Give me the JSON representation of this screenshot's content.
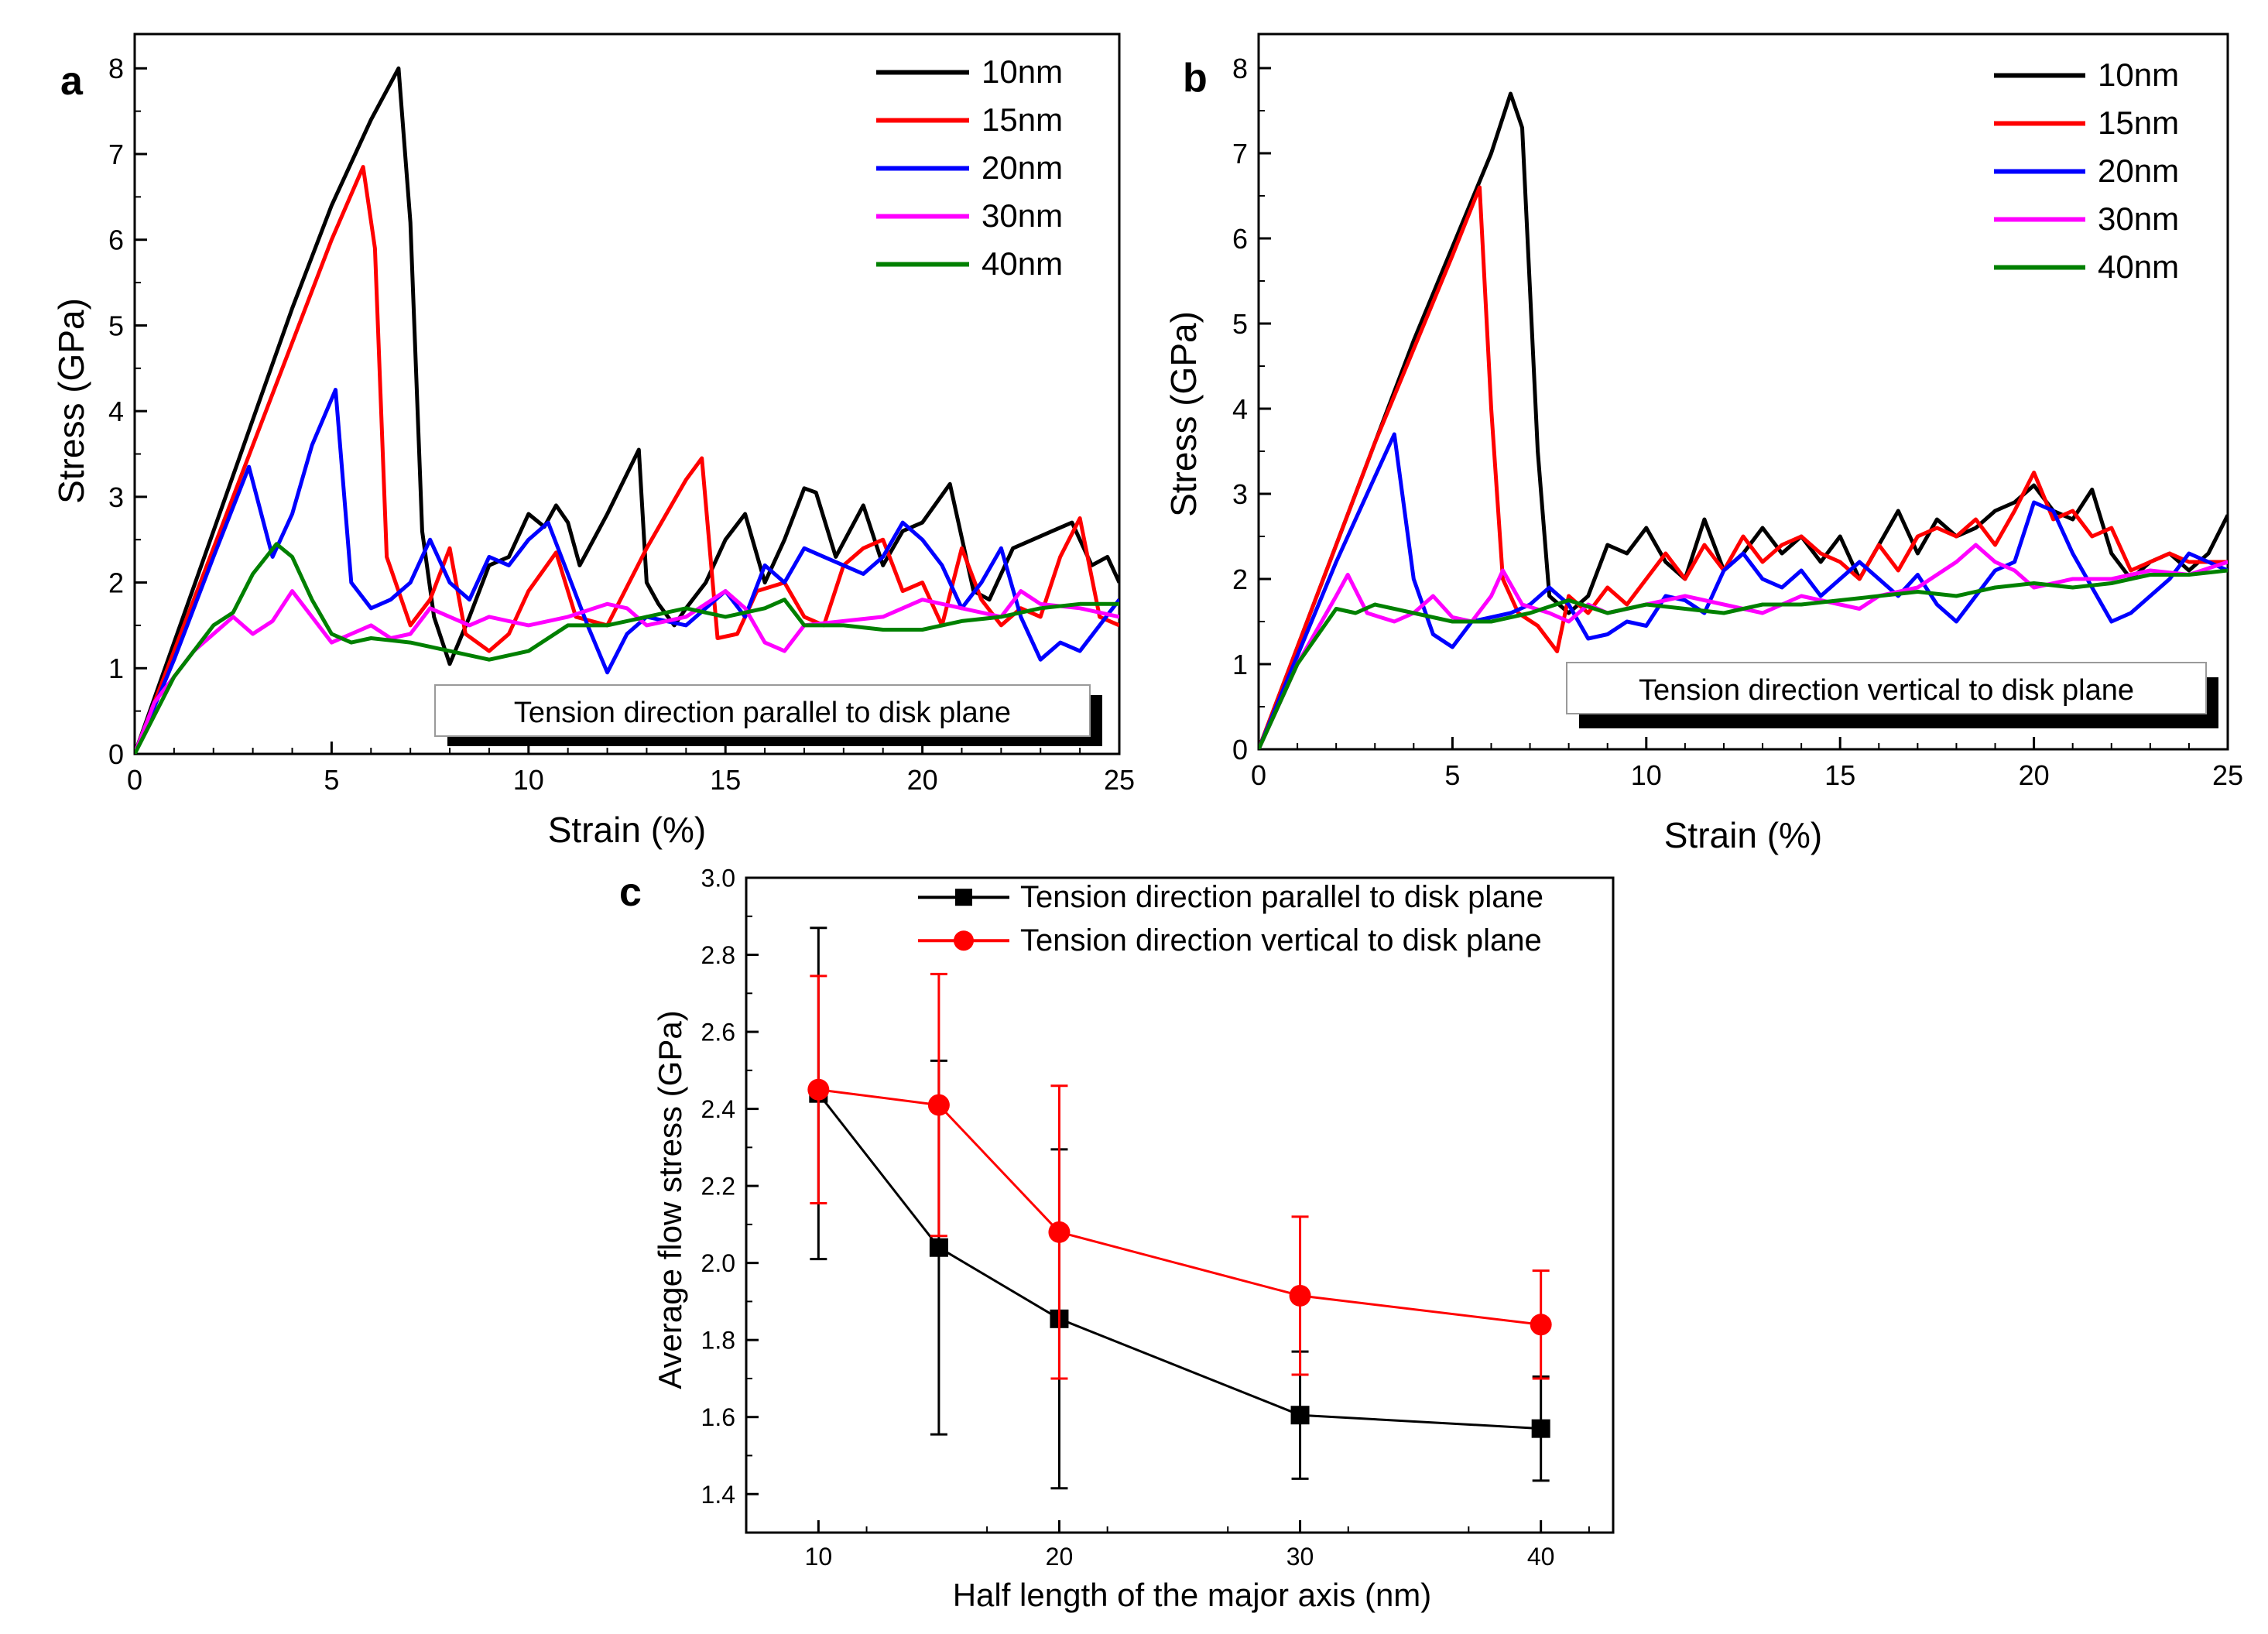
{
  "chart_data": [
    {
      "type": "line",
      "panel_label": "a",
      "xlabel": "Strain (%)",
      "ylabel": "Stress (GPa)",
      "xlim": [
        0,
        25
      ],
      "ylim": [
        0,
        8.4
      ],
      "xticks": [
        "0",
        "5",
        "10",
        "15",
        "20",
        "25"
      ],
      "yticks": [
        "0",
        "1",
        "2",
        "3",
        "4",
        "5",
        "6",
        "7",
        "8"
      ],
      "annotation": "Tension direction parallel to disk plane",
      "series": [
        {
          "name": "10nm",
          "color": "#000000",
          "x": [
            0,
            1,
            2,
            3,
            4,
            5,
            6,
            6.7,
            7.0,
            7.3,
            7.6,
            8.0,
            8.5,
            9.0,
            9.5,
            10.0,
            10.4,
            10.7,
            11.0,
            11.3,
            12.0,
            12.8,
            13.0,
            13.3,
            13.7,
            14.0,
            14.5,
            15.0,
            15.5,
            16.0,
            16.5,
            17.0,
            17.3,
            17.8,
            18.5,
            19.0,
            19.5,
            20.0,
            20.7,
            21.3,
            21.7,
            22.3,
            22.8,
            23.3,
            23.8,
            24.3,
            24.7,
            25.0
          ],
          "y": [
            0,
            1.3,
            2.6,
            3.9,
            5.2,
            6.4,
            7.4,
            8.0,
            6.2,
            2.6,
            1.6,
            1.05,
            1.6,
            2.2,
            2.3,
            2.8,
            2.65,
            2.9,
            2.7,
            2.2,
            2.8,
            3.55,
            2.0,
            1.75,
            1.5,
            1.7,
            2.0,
            2.5,
            2.8,
            2.0,
            2.5,
            3.1,
            3.05,
            2.3,
            2.9,
            2.2,
            2.6,
            2.7,
            3.15,
            1.9,
            1.8,
            2.4,
            2.5,
            2.6,
            2.7,
            2.2,
            2.3,
            2.0
          ]
        },
        {
          "name": "15nm",
          "color": "#ff0000",
          "x": [
            0,
            1,
            2,
            3,
            4,
            5,
            5.8,
            6.1,
            6.4,
            7.0,
            7.5,
            8.0,
            8.4,
            9.0,
            9.5,
            10.0,
            10.7,
            11.2,
            12.0,
            13.0,
            14.0,
            14.4,
            14.8,
            15.3,
            15.8,
            16.5,
            17.0,
            17.5,
            18.0,
            18.5,
            19.0,
            19.5,
            20.0,
            20.5,
            21.0,
            21.5,
            22.0,
            22.5,
            23.0,
            23.5,
            24.0,
            24.5,
            25.0
          ],
          "y": [
            0,
            1.2,
            2.4,
            3.6,
            4.8,
            6.0,
            6.85,
            5.9,
            2.3,
            1.5,
            1.8,
            2.4,
            1.4,
            1.2,
            1.4,
            1.9,
            2.35,
            1.6,
            1.5,
            2.4,
            3.2,
            3.45,
            1.35,
            1.4,
            1.9,
            2.0,
            1.6,
            1.5,
            2.2,
            2.4,
            2.5,
            1.9,
            2.0,
            1.5,
            2.4,
            1.8,
            1.5,
            1.7,
            1.6,
            2.3,
            2.75,
            1.6,
            1.5
          ]
        },
        {
          "name": "20nm",
          "color": "#0000ff",
          "x": [
            0,
            1,
            2,
            2.9,
            3.5,
            4.0,
            4.5,
            5.1,
            5.5,
            6.0,
            6.5,
            7.0,
            7.5,
            8.0,
            8.5,
            9.0,
            9.5,
            10.0,
            10.5,
            11.0,
            11.5,
            12.0,
            12.5,
            13.0,
            14.0,
            15.0,
            15.5,
            16.0,
            16.5,
            17.0,
            17.5,
            18.0,
            18.5,
            19.0,
            19.5,
            20.0,
            20.5,
            21.0,
            21.5,
            22.0,
            22.5,
            23.0,
            23.5,
            24.0,
            24.5,
            25.0
          ],
          "y": [
            0,
            1.1,
            2.3,
            3.35,
            2.3,
            2.8,
            3.6,
            4.25,
            2.0,
            1.7,
            1.8,
            2.0,
            2.5,
            2.0,
            1.8,
            2.3,
            2.2,
            2.5,
            2.7,
            2.1,
            1.5,
            0.95,
            1.4,
            1.6,
            1.5,
            1.9,
            1.6,
            2.2,
            2.0,
            2.4,
            2.3,
            2.2,
            2.1,
            2.3,
            2.7,
            2.5,
            2.2,
            1.7,
            2.0,
            2.4,
            1.6,
            1.1,
            1.3,
            1.2,
            1.5,
            1.8
          ]
        },
        {
          "name": "30nm",
          "color": "#ff00ff",
          "x": [
            0,
            0.5,
            1,
            1.5,
            2,
            2.5,
            3.0,
            3.5,
            4.0,
            4.5,
            5.0,
            5.5,
            6.0,
            6.5,
            7.0,
            7.5,
            8.0,
            8.5,
            9.0,
            9.5,
            10.0,
            11.0,
            12.0,
            12.5,
            13.0,
            14.0,
            15.0,
            15.5,
            16.0,
            16.5,
            17.0,
            18.0,
            19.0,
            20.0,
            21.0,
            22.0,
            22.5,
            23.0,
            24.0,
            25.0
          ],
          "y": [
            0,
            0.6,
            0.9,
            1.2,
            1.4,
            1.6,
            1.4,
            1.55,
            1.9,
            1.6,
            1.3,
            1.4,
            1.5,
            1.35,
            1.4,
            1.7,
            1.6,
            1.5,
            1.6,
            1.55,
            1.5,
            1.6,
            1.75,
            1.7,
            1.5,
            1.6,
            1.9,
            1.7,
            1.3,
            1.2,
            1.5,
            1.55,
            1.6,
            1.8,
            1.7,
            1.6,
            1.9,
            1.75,
            1.7,
            1.6
          ]
        },
        {
          "name": "40nm",
          "color": "#008000",
          "x": [
            0,
            1,
            2,
            2.5,
            3.0,
            3.6,
            4.0,
            4.5,
            5.0,
            5.5,
            6.0,
            7.0,
            8.0,
            9.0,
            10.0,
            11.0,
            12.0,
            13.0,
            14.0,
            15.0,
            16.0,
            16.5,
            17.0,
            18.0,
            19.0,
            20.0,
            21.0,
            22.0,
            23.0,
            24.0,
            25.0
          ],
          "y": [
            0,
            0.9,
            1.5,
            1.65,
            2.1,
            2.45,
            2.3,
            1.8,
            1.4,
            1.3,
            1.35,
            1.3,
            1.2,
            1.1,
            1.2,
            1.5,
            1.5,
            1.6,
            1.7,
            1.6,
            1.7,
            1.8,
            1.5,
            1.5,
            1.45,
            1.45,
            1.55,
            1.6,
            1.7,
            1.75,
            1.75
          ]
        }
      ]
    },
    {
      "type": "line",
      "panel_label": "b",
      "xlabel": "Strain (%)",
      "ylabel": "Stress (GPa)",
      "xlim": [
        0,
        25
      ],
      "ylim": [
        0,
        8.4
      ],
      "xticks": [
        "0",
        "5",
        "10",
        "15",
        "20",
        "25"
      ],
      "yticks": [
        "0",
        "1",
        "2",
        "3",
        "4",
        "5",
        "6",
        "7",
        "8"
      ],
      "annotation": "Tension direction vertical to disk plane",
      "series": [
        {
          "name": "10nm",
          "color": "#000000",
          "x": [
            0,
            1,
            2,
            3,
            4,
            5,
            6,
            6.5,
            6.8,
            7.2,
            7.5,
            8.0,
            8.5,
            9.0,
            9.5,
            10.0,
            10.5,
            11.0,
            11.5,
            12.0,
            12.5,
            13.0,
            13.5,
            14.0,
            14.5,
            15.0,
            15.5,
            16.0,
            16.5,
            17.0,
            17.5,
            18.0,
            18.5,
            19.0,
            19.5,
            20.0,
            20.5,
            21.0,
            21.5,
            22.0,
            22.5,
            23.0,
            23.5,
            24.0,
            24.5,
            25.0
          ],
          "y": [
            0,
            1.2,
            2.4,
            3.6,
            4.8,
            5.9,
            7.0,
            7.7,
            7.3,
            3.5,
            1.8,
            1.6,
            1.8,
            2.4,
            2.3,
            2.6,
            2.2,
            2.0,
            2.7,
            2.1,
            2.3,
            2.6,
            2.3,
            2.5,
            2.2,
            2.5,
            2.0,
            2.4,
            2.8,
            2.3,
            2.7,
            2.5,
            2.6,
            2.8,
            2.9,
            3.1,
            2.8,
            2.7,
            3.05,
            2.3,
            2.0,
            2.2,
            2.3,
            2.1,
            2.3,
            2.75
          ]
        },
        {
          "name": "15nm",
          "color": "#ff0000",
          "x": [
            0,
            1,
            2,
            3,
            4,
            5,
            5.7,
            6.0,
            6.3,
            6.7,
            7.2,
            7.7,
            8.0,
            8.5,
            9.0,
            9.5,
            10.0,
            10.5,
            11.0,
            11.5,
            12.0,
            12.5,
            13.0,
            13.5,
            14.0,
            14.5,
            15.0,
            15.5,
            16.0,
            16.5,
            17.0,
            17.5,
            18.0,
            18.5,
            19.0,
            19.5,
            20.0,
            20.5,
            21.0,
            21.5,
            22.0,
            22.5,
            23.0,
            23.5,
            24.0,
            25.0
          ],
          "y": [
            0,
            1.2,
            2.4,
            3.6,
            4.7,
            5.8,
            6.6,
            4.0,
            2.0,
            1.6,
            1.45,
            1.15,
            1.8,
            1.6,
            1.9,
            1.7,
            2.0,
            2.3,
            2.0,
            2.4,
            2.1,
            2.5,
            2.2,
            2.4,
            2.5,
            2.3,
            2.2,
            2.0,
            2.4,
            2.1,
            2.5,
            2.6,
            2.5,
            2.7,
            2.4,
            2.8,
            3.25,
            2.7,
            2.8,
            2.5,
            2.6,
            2.1,
            2.2,
            2.3,
            2.2,
            2.2
          ]
        },
        {
          "name": "20nm",
          "color": "#0000ff",
          "x": [
            0,
            1,
            2,
            3,
            3.5,
            4.0,
            4.5,
            5.0,
            5.5,
            6.0,
            6.5,
            7.0,
            7.5,
            8.0,
            8.5,
            9.0,
            9.5,
            10.0,
            10.5,
            11.0,
            11.5,
            12.0,
            12.5,
            13.0,
            13.5,
            14.0,
            14.5,
            15.0,
            15.5,
            16.0,
            16.5,
            17.0,
            17.5,
            18.0,
            18.5,
            19.0,
            19.5,
            20.0,
            20.5,
            21.0,
            21.5,
            22.0,
            22.5,
            23.0,
            23.5,
            24.0,
            24.5,
            25.0
          ],
          "y": [
            0,
            1.1,
            2.2,
            3.2,
            3.7,
            2.0,
            1.35,
            1.2,
            1.5,
            1.55,
            1.6,
            1.7,
            1.9,
            1.7,
            1.3,
            1.35,
            1.5,
            1.45,
            1.8,
            1.75,
            1.6,
            2.1,
            2.3,
            2.0,
            1.9,
            2.1,
            1.8,
            2.0,
            2.2,
            2.0,
            1.8,
            2.05,
            1.7,
            1.5,
            1.8,
            2.1,
            2.2,
            2.9,
            2.8,
            2.3,
            1.9,
            1.5,
            1.6,
            1.8,
            2.0,
            2.3,
            2.2,
            2.1
          ]
        },
        {
          "name": "30nm",
          "color": "#ff00ff",
          "x": [
            0,
            1,
            2.0,
            2.3,
            2.8,
            3.5,
            4.0,
            4.5,
            5.0,
            5.5,
            6.0,
            6.3,
            6.8,
            7.5,
            8.0,
            8.5,
            9.0,
            10.0,
            11.0,
            12.0,
            13.0,
            14.0,
            15.0,
            15.5,
            16.0,
            17.0,
            18.0,
            18.5,
            19.0,
            19.5,
            20.0,
            21.0,
            22.0,
            23.0,
            24.0,
            25.0
          ],
          "y": [
            0,
            1.0,
            1.8,
            2.05,
            1.6,
            1.5,
            1.6,
            1.8,
            1.55,
            1.5,
            1.8,
            2.1,
            1.7,
            1.6,
            1.5,
            1.7,
            1.6,
            1.7,
            1.8,
            1.7,
            1.6,
            1.8,
            1.7,
            1.65,
            1.8,
            1.9,
            2.2,
            2.4,
            2.2,
            2.1,
            1.9,
            2.0,
            2.0,
            2.1,
            2.05,
            2.2
          ]
        },
        {
          "name": "40nm",
          "color": "#008000",
          "x": [
            0,
            1,
            2.0,
            2.5,
            3.0,
            4.0,
            5.0,
            6.0,
            7.0,
            8.0,
            9.0,
            10.0,
            11.0,
            12.0,
            13.0,
            14.0,
            15.0,
            16.0,
            17.0,
            18.0,
            19.0,
            20.0,
            21.0,
            22.0,
            23.0,
            24.0,
            25.0
          ],
          "y": [
            0,
            1.0,
            1.65,
            1.6,
            1.7,
            1.6,
            1.5,
            1.5,
            1.6,
            1.75,
            1.6,
            1.7,
            1.65,
            1.6,
            1.7,
            1.7,
            1.75,
            1.8,
            1.85,
            1.8,
            1.9,
            1.95,
            1.9,
            1.95,
            2.05,
            2.05,
            2.1
          ]
        }
      ]
    },
    {
      "type": "line",
      "panel_label": "c",
      "xlabel": "Half length of the major axis (nm)",
      "ylabel": "Average flow stress (GPa)",
      "xlim": [
        7,
        43
      ],
      "ylim": [
        1.3,
        3.0
      ],
      "xticks": [
        "10",
        "20",
        "30",
        "40"
      ],
      "yticks": [
        "1.4",
        "1.6",
        "1.8",
        "2.0",
        "2.2",
        "2.4",
        "2.6",
        "2.8",
        "3.0"
      ],
      "error_bars": true,
      "series": [
        {
          "name": "Tension direction parallel to disk plane",
          "color": "#000000",
          "marker": "square",
          "x": [
            10,
            15,
            20,
            30,
            40
          ],
          "y": [
            2.44,
            2.04,
            1.855,
            1.605,
            1.57
          ],
          "yerr": [
            0.43,
            0.485,
            0.44,
            0.165,
            0.135
          ]
        },
        {
          "name": "Tension direction vertical to disk plane",
          "color": "#ff0000",
          "marker": "circle",
          "x": [
            10,
            15,
            20,
            30,
            40
          ],
          "y": [
            2.45,
            2.41,
            2.08,
            1.915,
            1.84
          ],
          "yerr": [
            0.295,
            0.34,
            0.38,
            0.205,
            0.14
          ]
        }
      ]
    }
  ]
}
